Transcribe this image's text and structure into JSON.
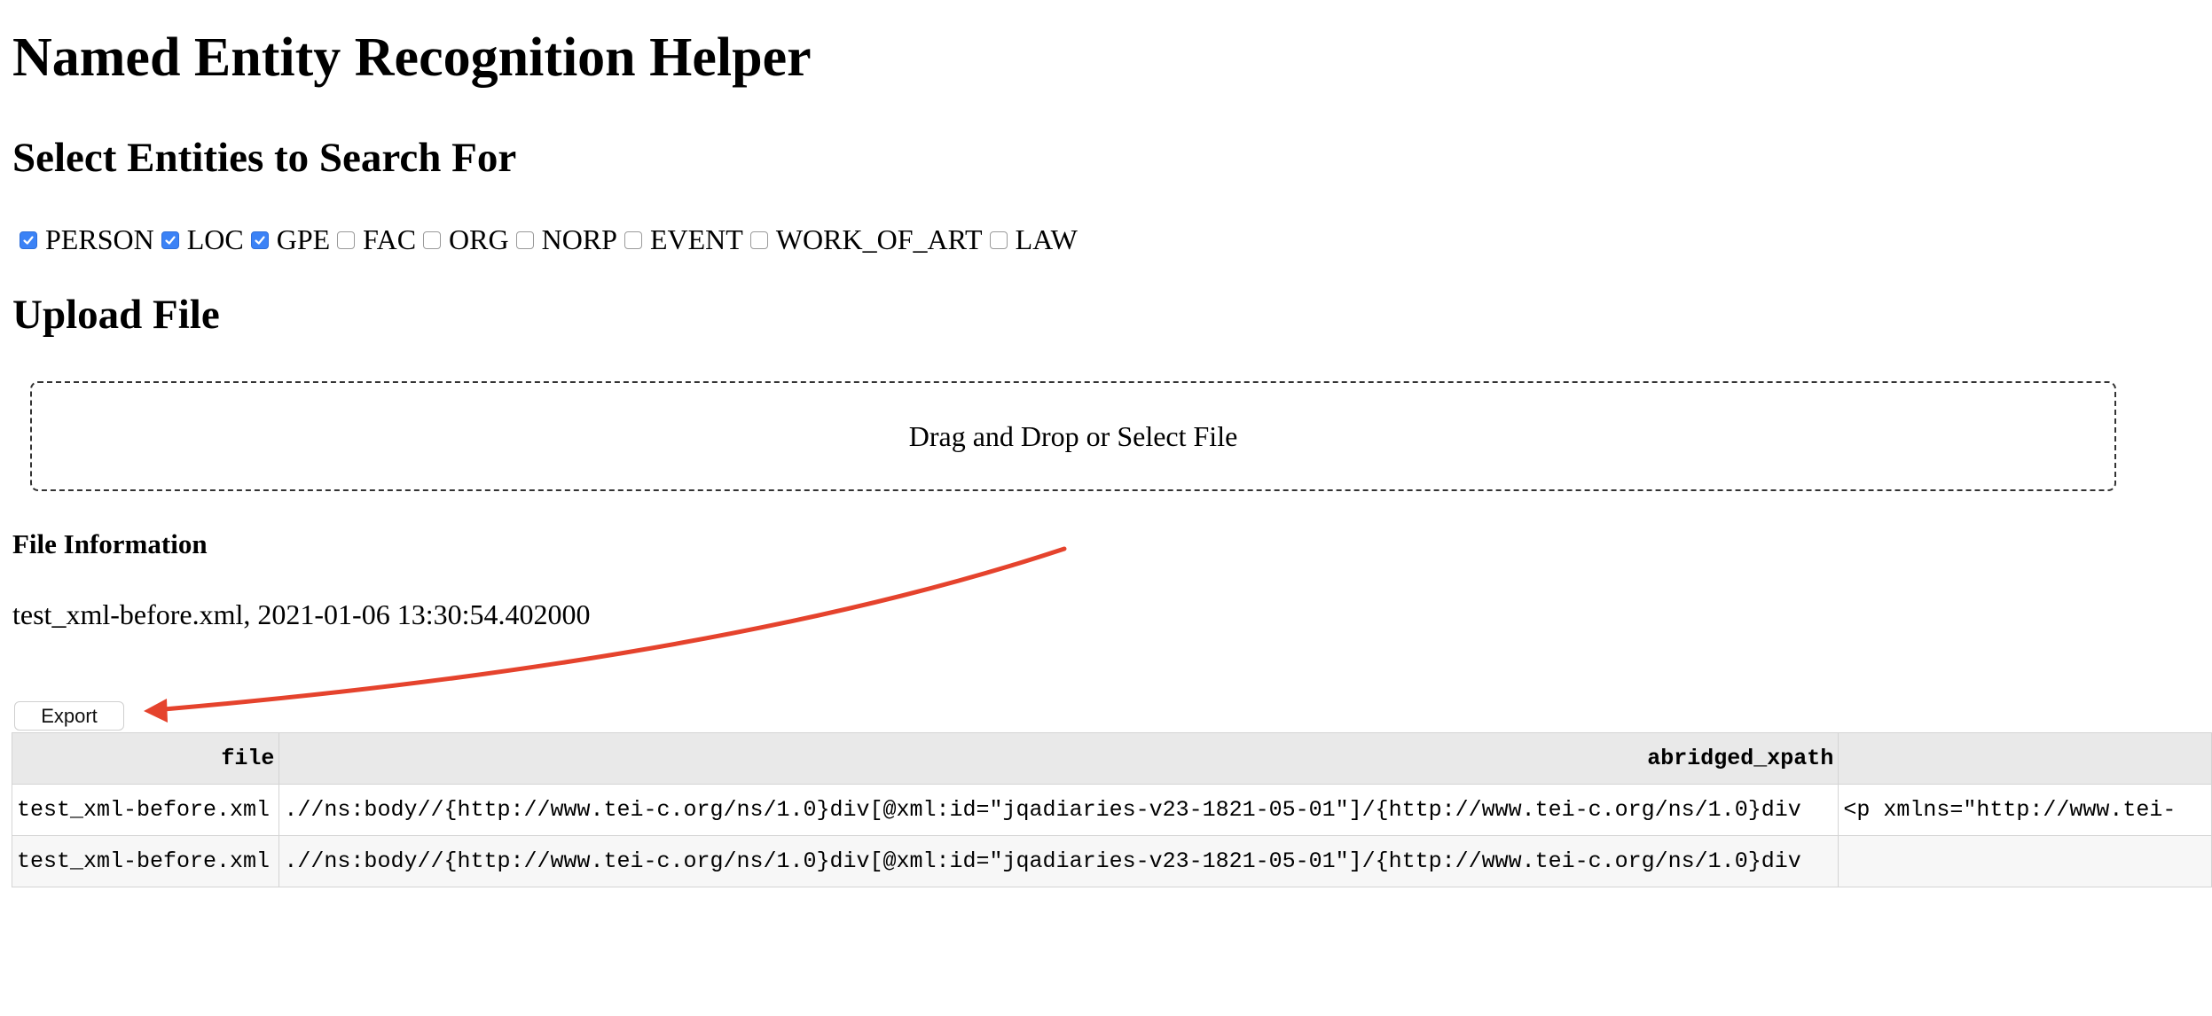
{
  "app": {
    "title": "Named Entity Recognition Helper"
  },
  "entities_section": {
    "heading": "Select Entities to Search For",
    "options": [
      {
        "label": "PERSON",
        "checked": true
      },
      {
        "label": "LOC",
        "checked": true
      },
      {
        "label": "GPE",
        "checked": true
      },
      {
        "label": "FAC",
        "checked": false
      },
      {
        "label": "ORG",
        "checked": false
      },
      {
        "label": "NORP",
        "checked": false
      },
      {
        "label": "EVENT",
        "checked": false
      },
      {
        "label": "WORK_OF_ART",
        "checked": false
      },
      {
        "label": "LAW",
        "checked": false
      }
    ]
  },
  "upload_section": {
    "heading": "Upload File",
    "dropzone_label": "Drag and Drop or Select File"
  },
  "file_info": {
    "heading": "File Information",
    "text": "test_xml-before.xml, 2021-01-06 13:30:54.402000"
  },
  "export": {
    "label": "Export"
  },
  "table": {
    "columns": [
      "file",
      "abridged_xpath",
      ""
    ],
    "rows": [
      [
        "test_xml-before.xml",
        ".//ns:body//{http://www.tei-c.org/ns/1.0}div[@xml:id=\"jqadiaries-v23-1821-05-01\"]/{http://www.tei-c.org/ns/1.0}div",
        "<p xmlns=\"http://www.tei-"
      ],
      [
        "test_xml-before.xml",
        ".//ns:body//{http://www.tei-c.org/ns/1.0}div[@xml:id=\"jqadiaries-v23-1821-05-01\"]/{http://www.tei-c.org/ns/1.0}div",
        ""
      ]
    ]
  },
  "colors": {
    "checkbox_checked": "#3b82f6",
    "annotation_arrow": "#e5432d",
    "table_header_bg": "#e9e9e9"
  }
}
